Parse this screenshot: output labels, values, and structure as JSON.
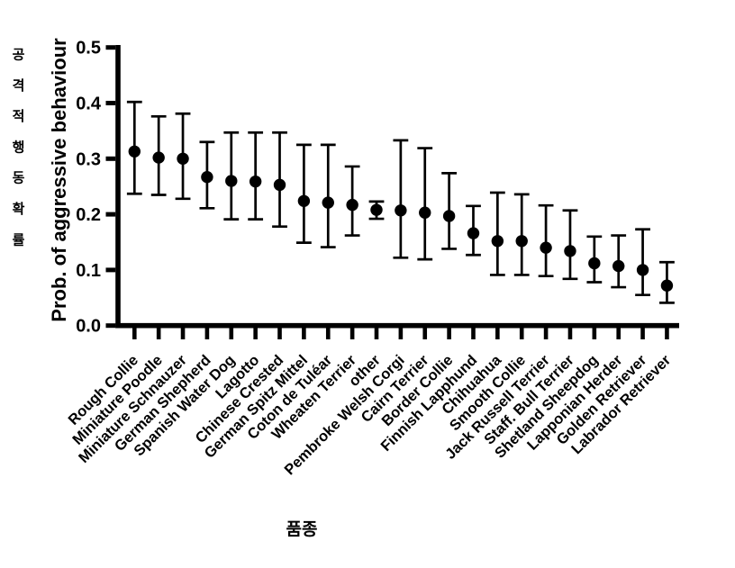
{
  "figure": {
    "background_color": "#ffffff",
    "ink_color": "#000000"
  },
  "chart_data": {
    "type": "scatter",
    "subtype": "point-estimate-with-error-bars",
    "title": "",
    "xlabel": "품종",
    "ylabel": "Prob. of aggressive behaviour",
    "ylabel_secondary": "공격적행동확률",
    "ylim": [
      0.0,
      0.5
    ],
    "yticks": [
      0.0,
      0.1,
      0.2,
      0.3,
      0.4,
      0.5
    ],
    "grid": false,
    "legend": false,
    "marker": "filled-circle",
    "error_bar_caps": true,
    "categories": [
      "Rough Collie",
      "Miniature Poodle",
      "Miniature Schnauzer",
      "German Shepherd",
      "Spanish Water Dog",
      "Lagotto",
      "Chinese Crested",
      "German Spitz Mittel",
      "Coton de Tuléar",
      "Wheaten Terrier",
      "other",
      "Pembroke Welsh Corgi",
      "Cairn Terrier",
      "Border Collie",
      "Finnish Lapphund",
      "Chihuahua",
      "Smooth Collie",
      "Jack Russell Terrier",
      "Staff. Bull Terrier",
      "Shetland Sheepdog",
      "Lapponian Herder",
      "Golden Retriever",
      "Labrador Retriever"
    ],
    "series": [
      {
        "name": "Prob. of aggressive behaviour",
        "values": [
          0.313,
          0.302,
          0.3,
          0.267,
          0.26,
          0.259,
          0.253,
          0.224,
          0.221,
          0.217,
          0.208,
          0.207,
          0.203,
          0.197,
          0.166,
          0.152,
          0.152,
          0.14,
          0.134,
          0.112,
          0.107,
          0.1,
          0.072
        ],
        "error_low": [
          0.237,
          0.235,
          0.228,
          0.211,
          0.191,
          0.191,
          0.178,
          0.149,
          0.141,
          0.162,
          0.192,
          0.122,
          0.119,
          0.138,
          0.127,
          0.091,
          0.091,
          0.089,
          0.084,
          0.078,
          0.069,
          0.055,
          0.041
        ],
        "error_high": [
          0.402,
          0.376,
          0.381,
          0.33,
          0.347,
          0.347,
          0.347,
          0.325,
          0.325,
          0.286,
          0.223,
          0.333,
          0.319,
          0.274,
          0.215,
          0.239,
          0.236,
          0.216,
          0.207,
          0.16,
          0.162,
          0.173,
          0.114
        ]
      }
    ]
  }
}
